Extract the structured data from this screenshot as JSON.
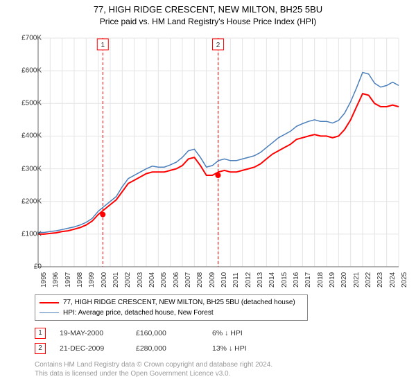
{
  "title": "77, HIGH RIDGE CRESCENT, NEW MILTON, BH25 5BU",
  "subtitle": "Price paid vs. HM Land Registry's House Price Index (HPI)",
  "chart": {
    "type": "line",
    "background_color": "#ffffff",
    "grid_color": "#e4e4e4",
    "axis_color": "#666666",
    "font_color": "#333333",
    "tick_fontsize": 10,
    "ylim": [
      0,
      700000
    ],
    "ytick_step": 100000,
    "ytick_labels": [
      "£0",
      "£100K",
      "£200K",
      "£300K",
      "£400K",
      "£500K",
      "£600K",
      "£700K"
    ],
    "xlim": [
      1995,
      2025
    ],
    "xtick_step": 1,
    "xtick_labels": [
      "1995",
      "1996",
      "1997",
      "1998",
      "1999",
      "2000",
      "2001",
      "2002",
      "2003",
      "2004",
      "2005",
      "2006",
      "2007",
      "2008",
      "2009",
      "2010",
      "2011",
      "2012",
      "2013",
      "2014",
      "2015",
      "2016",
      "2017",
      "2018",
      "2019",
      "2020",
      "2021",
      "2022",
      "2023",
      "2024",
      "2025"
    ],
    "series": [
      {
        "name": "price_paid",
        "label": "77, HIGH RIDGE CRESCENT, NEW MILTON, BH25 5BU (detached house)",
        "color": "#ff0000",
        "line_width": 2,
        "x": [
          1995,
          1995.5,
          1996,
          1996.5,
          1997,
          1997.5,
          1998,
          1998.5,
          1999,
          1999.5,
          2000,
          2000.5,
          2001,
          2001.5,
          2002,
          2002.5,
          2003,
          2003.5,
          2004,
          2004.5,
          2005,
          2005.5,
          2006,
          2006.5,
          2007,
          2007.5,
          2008,
          2008.5,
          2009,
          2009.5,
          2010,
          2010.5,
          2011,
          2011.5,
          2012,
          2012.5,
          2013,
          2013.5,
          2014,
          2014.5,
          2015,
          2015.5,
          2016,
          2016.5,
          2017,
          2017.5,
          2018,
          2018.5,
          2019,
          2019.5,
          2020,
          2020.5,
          2021,
          2021.5,
          2022,
          2022.5,
          2023,
          2023.5,
          2024,
          2024.5,
          2025
        ],
        "y": [
          100000,
          100000,
          102000,
          104000,
          108000,
          110000,
          115000,
          120000,
          128000,
          140000,
          160000,
          175000,
          190000,
          205000,
          230000,
          255000,
          265000,
          275000,
          285000,
          290000,
          290000,
          290000,
          295000,
          300000,
          310000,
          330000,
          335000,
          310000,
          280000,
          280000,
          290000,
          295000,
          290000,
          290000,
          295000,
          300000,
          305000,
          315000,
          330000,
          345000,
          355000,
          365000,
          375000,
          390000,
          395000,
          400000,
          405000,
          400000,
          400000,
          395000,
          400000,
          420000,
          450000,
          490000,
          530000,
          525000,
          500000,
          490000,
          490000,
          495000,
          490000
        ]
      },
      {
        "name": "hpi",
        "label": "HPI: Average price, detached house, New Forest",
        "color": "#4a7ebb",
        "line_width": 1.5,
        "x": [
          1995,
          1995.5,
          1996,
          1996.5,
          1997,
          1997.5,
          1998,
          1998.5,
          1999,
          1999.5,
          2000,
          2000.5,
          2001,
          2001.5,
          2002,
          2002.5,
          2003,
          2003.5,
          2004,
          2004.5,
          2005,
          2005.5,
          2006,
          2006.5,
          2007,
          2007.5,
          2008,
          2008.5,
          2009,
          2009.5,
          2010,
          2010.5,
          2011,
          2011.5,
          2012,
          2012.5,
          2013,
          2013.5,
          2014,
          2014.5,
          2015,
          2015.5,
          2016,
          2016.5,
          2017,
          2017.5,
          2018,
          2018.5,
          2019,
          2019.5,
          2020,
          2020.5,
          2021,
          2021.5,
          2022,
          2022.5,
          2023,
          2023.5,
          2024,
          2024.5,
          2025
        ],
        "y": [
          105000,
          105000,
          108000,
          110000,
          114000,
          118000,
          122000,
          128000,
          136000,
          148000,
          170000,
          185000,
          200000,
          215000,
          245000,
          270000,
          280000,
          290000,
          300000,
          308000,
          305000,
          305000,
          312000,
          320000,
          335000,
          355000,
          360000,
          335000,
          305000,
          310000,
          325000,
          330000,
          325000,
          325000,
          330000,
          335000,
          340000,
          350000,
          365000,
          380000,
          395000,
          405000,
          415000,
          430000,
          438000,
          445000,
          450000,
          445000,
          445000,
          440000,
          448000,
          470000,
          505000,
          548000,
          595000,
          590000,
          562000,
          550000,
          555000,
          565000,
          555000
        ]
      }
    ],
    "markers": [
      {
        "num": "1",
        "x": 2000.38,
        "y": 160000,
        "color": "#ff0000"
      },
      {
        "num": "2",
        "x": 2009.97,
        "y": 280000,
        "color": "#ff0000"
      }
    ],
    "marker_box_color": "#ff0000",
    "marker_line_color": "#ff0000",
    "marker_line_dash": "4,3"
  },
  "transactions": [
    {
      "num": "1",
      "date": "19-MAY-2000",
      "price": "£160,000",
      "diff_pct": "6%",
      "diff_dir": "down",
      "diff_vs": "HPI"
    },
    {
      "num": "2",
      "date": "21-DEC-2009",
      "price": "£280,000",
      "diff_pct": "13%",
      "diff_dir": "down",
      "diff_vs": "HPI"
    }
  ],
  "legend": {
    "border_color": "#888888",
    "fontsize": 10
  },
  "footer": {
    "line1": "Contains HM Land Registry data © Crown copyright and database right 2024.",
    "line2": "This data is licensed under the Open Government Licence v3.0.",
    "color": "#999999"
  }
}
